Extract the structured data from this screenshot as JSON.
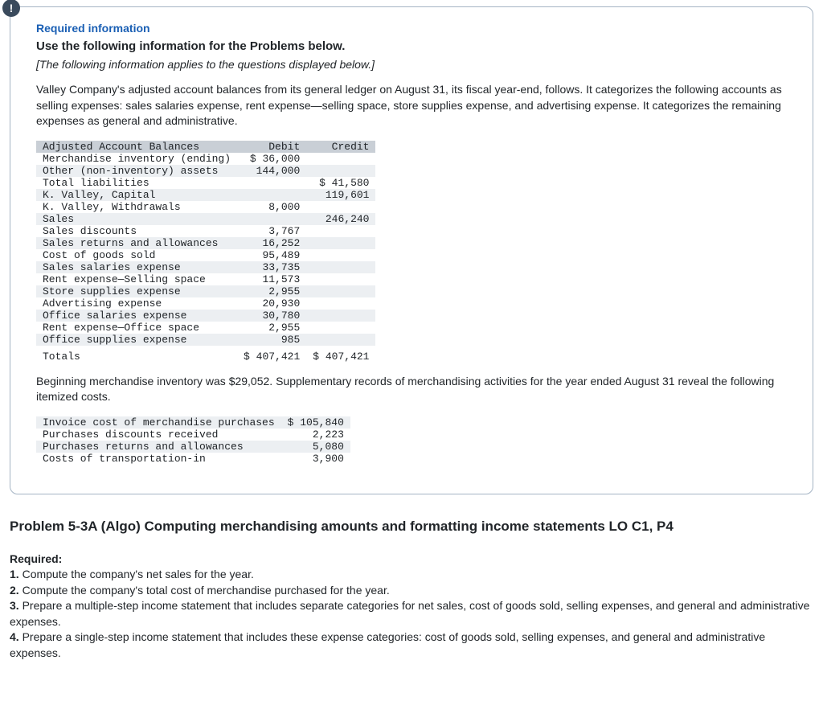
{
  "badge": "!",
  "required_info_label": "Required information",
  "bold_line": "Use the following information for the Problems below.",
  "italic_line": "[The following information applies to the questions displayed below.]",
  "paragraph1": "Valley Company's adjusted account balances from its general ledger on August 31, its fiscal year-end, follows. It categorizes the following accounts as selling expenses: sales salaries expense, rent expense—selling space, store supplies expense, and advertising expense. It categorizes the remaining expenses as general and administrative.",
  "table1": {
    "columns": [
      "Adjusted Account Balances",
      "Debit",
      "Credit"
    ],
    "rows": [
      [
        "Merchandise inventory (ending)",
        "$ 36,000",
        ""
      ],
      [
        "Other (non-inventory) assets",
        "144,000",
        ""
      ],
      [
        "Total liabilities",
        "",
        "$ 41,580"
      ],
      [
        "K. Valley, Capital",
        "",
        "119,601"
      ],
      [
        "K. Valley, Withdrawals",
        "8,000",
        ""
      ],
      [
        "Sales",
        "",
        "246,240"
      ],
      [
        "Sales discounts",
        "3,767",
        ""
      ],
      [
        "Sales returns and allowances",
        "16,252",
        ""
      ],
      [
        "Cost of goods sold",
        "95,489",
        ""
      ],
      [
        "Sales salaries expense",
        "33,735",
        ""
      ],
      [
        "Rent expense—Selling space",
        "11,573",
        ""
      ],
      [
        "Store supplies expense",
        "2,955",
        ""
      ],
      [
        "Advertising expense",
        "20,930",
        ""
      ],
      [
        "Office salaries expense",
        "30,780",
        ""
      ],
      [
        "Rent expense—Office space",
        "2,955",
        ""
      ],
      [
        "Office supplies expense",
        "985",
        ""
      ]
    ],
    "totals": [
      "Totals",
      "$ 407,421",
      "$ 407,421"
    ]
  },
  "paragraph2": "Beginning merchandise inventory was $29,052. Supplementary records of merchandising activities for the year ended August 31 reveal the following itemized costs.",
  "table2": {
    "rows": [
      [
        "Invoice cost of merchandise purchases",
        "$ 105,840"
      ],
      [
        "Purchases discounts received",
        "2,223"
      ],
      [
        "Purchases returns and allowances",
        "5,080"
      ],
      [
        "Costs of transportation-in",
        "3,900"
      ]
    ]
  },
  "problem_title": "Problem 5-3A (Algo) Computing merchandising amounts and formatting income statements LO C1, P4",
  "required_label": "Required:",
  "requirements": [
    {
      "n": "1.",
      "text": "Compute the company's net sales for the year."
    },
    {
      "n": "2.",
      "text": "Compute the company's total cost of merchandise purchased for the year."
    },
    {
      "n": "3.",
      "text": "Prepare a multiple-step income statement that includes separate categories for net sales, cost of goods sold, selling expenses, and general and administrative expenses."
    },
    {
      "n": "4.",
      "text": "Prepare a single-step income statement that includes these expense categories: cost of goods sold, selling expenses, and general and administrative expenses."
    }
  ]
}
